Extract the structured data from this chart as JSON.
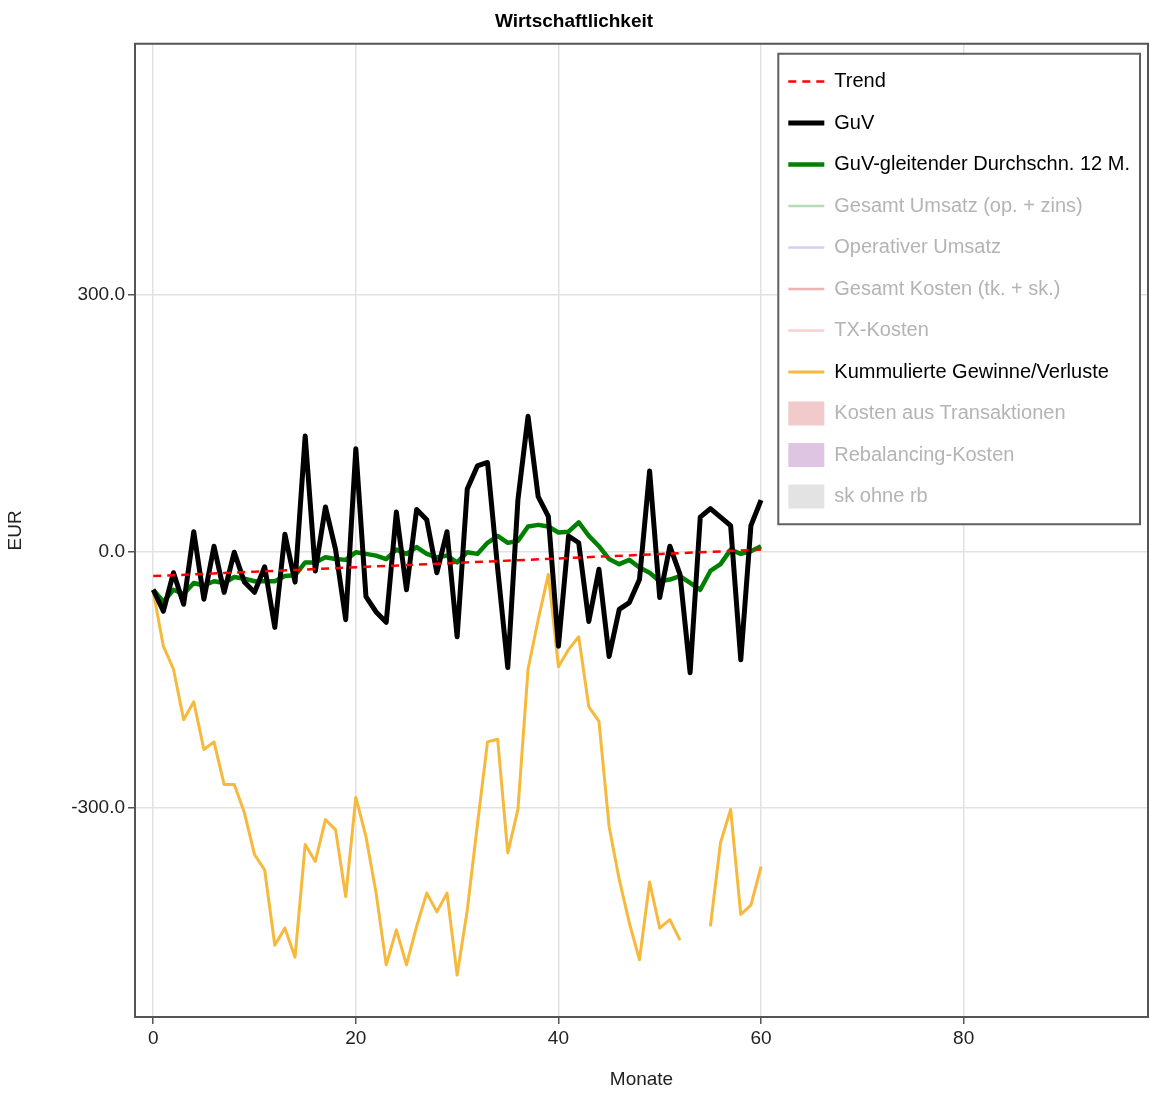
{
  "chart_data": {
    "type": "line",
    "title": "Wirtschaftlichkeit",
    "xlabel": "Monate",
    "ylabel": "EUR",
    "x": [
      0,
      1,
      2,
      3,
      4,
      5,
      6,
      7,
      8,
      9,
      10,
      11,
      12,
      13,
      14,
      15,
      16,
      17,
      18,
      19,
      20,
      21,
      22,
      23,
      24,
      25,
      26,
      27,
      28,
      29,
      30,
      31,
      32,
      33,
      34,
      35,
      36,
      37,
      38,
      39,
      40,
      41,
      42,
      43,
      44,
      45,
      46,
      47,
      48,
      49,
      50,
      51,
      52,
      53,
      54,
      55,
      56,
      57,
      58,
      59,
      60
    ],
    "xlim": [
      -1.8,
      98.2
    ],
    "xticks": [
      0,
      20,
      40,
      60,
      80
    ],
    "ylim": [
      -545,
      594
    ],
    "yticks": [
      {
        "value": -300,
        "label": "-300.0"
      },
      {
        "value": 0,
        "label": "0.0"
      },
      {
        "value": 300,
        "label": "300.0"
      }
    ],
    "grid": true,
    "legend": "top right",
    "marker": "none",
    "series": [
      {
        "name": "Trend",
        "color": "#ff0000",
        "line_style": "dashed",
        "x": [
          0,
          60
        ],
        "values": [
          -29,
          2
        ]
      },
      {
        "name": "GuV",
        "color": "#000000",
        "values": [
          -45,
          -70,
          -25,
          -62,
          23,
          -56,
          6,
          -48,
          -1,
          -36,
          -48,
          -18,
          -89,
          20,
          -36,
          135,
          -23,
          52,
          2,
          -80,
          120,
          -53,
          -71,
          -83,
          46,
          -45,
          49,
          37,
          -25,
          23,
          -100,
          73,
          100,
          104,
          -20,
          -136,
          60,
          158,
          64,
          41,
          -111,
          18,
          10,
          -82,
          -21,
          -123,
          -68,
          -60,
          -33,
          94,
          -54,
          6,
          -27,
          -142,
          40,
          50,
          40,
          30,
          -127,
          30,
          60
        ]
      },
      {
        "name": "GuV-gleitender Durchschn. 12 M.",
        "color": "#008000",
        "values": [
          -45,
          -59,
          -45,
          -50,
          -37,
          -40,
          -35,
          -37,
          -30,
          -32,
          -35,
          -35,
          -35,
          -29,
          -28,
          -13,
          -13,
          -7,
          -9,
          -10,
          -1,
          -3,
          -5,
          -9,
          2,
          -3,
          5,
          -3,
          -7,
          -5,
          -13,
          -1,
          -3,
          10,
          18,
          10,
          12,
          29,
          31,
          29,
          22,
          23,
          34,
          18,
          6,
          -9,
          -15,
          -10,
          -19,
          -25,
          -35,
          -33,
          -29,
          -37,
          -45,
          -23,
          -15,
          2,
          -3,
          0,
          6
        ]
      },
      {
        "name": "Gesamt Umsatz (op. + zins)",
        "color": "#88c488",
        "values": [
          null,
          null,
          null,
          null,
          null,
          null,
          null,
          null,
          null,
          null,
          null,
          null,
          null,
          null,
          null,
          null,
          null,
          null,
          null,
          null,
          null,
          null,
          null,
          null,
          null,
          null,
          null,
          null,
          null,
          null,
          null,
          null,
          null,
          null,
          null,
          null,
          null,
          null,
          null,
          null,
          null,
          null,
          null,
          null,
          null,
          null,
          null,
          null,
          null,
          null,
          null,
          null,
          null,
          null,
          null,
          null,
          null,
          null,
          null,
          null,
          null
        ]
      },
      {
        "name": "Operativer Umsatz",
        "color": "#b0b0e8",
        "values": [
          null,
          null,
          null,
          null,
          null,
          null,
          null,
          null,
          null,
          null,
          null,
          null,
          null,
          null,
          null,
          null,
          null,
          null,
          null,
          null,
          null,
          null,
          null,
          null,
          null,
          null,
          null,
          null,
          null,
          null,
          null,
          null,
          null,
          null,
          null,
          null,
          null,
          null,
          null,
          null,
          null,
          null,
          null,
          null,
          null,
          null,
          null,
          null,
          null,
          null,
          null,
          null,
          null,
          null,
          null,
          null,
          null,
          null,
          null,
          null,
          null
        ]
      },
      {
        "name": "Gesamt Kosten (tk. + sk.)",
        "color": "#e08080",
        "values": [
          null,
          null,
          null,
          null,
          null,
          null,
          null,
          null,
          null,
          null,
          null,
          null,
          null,
          null,
          null,
          null,
          null,
          null,
          null,
          null,
          null,
          null,
          null,
          null,
          null,
          null,
          null,
          null,
          null,
          null,
          null,
          null,
          null,
          null,
          null,
          null,
          null,
          null,
          null,
          null,
          null,
          null,
          null,
          null,
          null,
          null,
          null,
          null,
          null,
          null,
          null,
          null,
          null,
          null,
          null,
          null,
          null,
          null,
          null,
          null,
          null
        ]
      },
      {
        "name": "TX-Kosten",
        "color": "#f0b0b0",
        "values": [
          null,
          null,
          null,
          null,
          null,
          null,
          null,
          null,
          null,
          null,
          null,
          null,
          null,
          null,
          null,
          null,
          null,
          null,
          null,
          null,
          null,
          null,
          null,
          null,
          null,
          null,
          null,
          null,
          null,
          null,
          null,
          null,
          null,
          null,
          null,
          null,
          null,
          null,
          null,
          null,
          null,
          null,
          null,
          null,
          null,
          null,
          null,
          null,
          null,
          null,
          null,
          null,
          null,
          null,
          null,
          null,
          null,
          null,
          null,
          null,
          null
        ]
      },
      {
        "name": "Kummulierte Gewinne/Verluste",
        "color": "#f7b93c",
        "values": [
          -47,
          -111,
          -138,
          -197,
          -176,
          -232,
          -223,
          -273,
          -273,
          -306,
          -355,
          -373,
          -461,
          -441,
          -475,
          -343,
          -363,
          -314,
          -326,
          -404,
          -288,
          -334,
          -400,
          -484,
          -443,
          -484,
          -439,
          -400,
          -422,
          -400,
          -496,
          -420,
          -320,
          -223,
          -220,
          -353,
          -302,
          -138,
          -80,
          -27,
          -135,
          -115,
          -100,
          -182,
          -199,
          -322,
          -384,
          -435,
          -478,
          -387,
          -441,
          -431,
          -455,
          null,
          null,
          -439,
          -341,
          -302,
          -425,
          -414,
          -369
        ]
      },
      {
        "name": "Kosten aus Transaktionen",
        "type": "bar",
        "color": "#e8a8a8",
        "values": [
          null,
          null,
          null,
          null,
          null,
          null,
          null,
          null,
          null,
          null,
          null,
          null,
          null,
          null,
          null,
          null,
          null,
          null,
          null,
          null,
          null,
          null,
          null,
          null,
          null,
          null,
          null,
          null,
          null,
          null,
          null,
          null,
          null,
          null,
          null,
          null,
          null,
          null,
          null,
          null,
          null,
          null,
          null,
          null,
          null,
          null,
          null,
          null,
          null,
          null,
          null,
          null,
          null,
          null,
          null,
          null,
          null,
          null,
          null,
          null,
          null
        ]
      },
      {
        "name": "Rebalancing-Kosten",
        "type": "bar",
        "color": "#c8a0d0",
        "values": [
          null,
          null,
          null,
          null,
          null,
          null,
          null,
          null,
          null,
          null,
          null,
          null,
          null,
          null,
          null,
          null,
          null,
          null,
          null,
          null,
          null,
          null,
          null,
          null,
          null,
          null,
          null,
          null,
          null,
          null,
          null,
          null,
          null,
          null,
          null,
          null,
          null,
          null,
          null,
          null,
          null,
          null,
          null,
          null,
          null,
          null,
          null,
          null,
          null,
          null,
          null,
          null,
          null,
          null,
          null,
          null,
          null,
          null,
          null,
          null,
          null
        ]
      },
      {
        "name": "sk ohne rb",
        "type": "bar",
        "color": "#d0d0d0",
        "values": [
          null,
          null,
          null,
          null,
          null,
          null,
          null,
          null,
          null,
          null,
          null,
          null,
          null,
          null,
          null,
          null,
          null,
          null,
          null,
          null,
          null,
          null,
          null,
          null,
          null,
          null,
          null,
          null,
          null,
          null,
          null,
          null,
          null,
          null,
          null,
          null,
          null,
          null,
          null,
          null,
          null,
          null,
          null,
          null,
          null,
          null,
          null,
          null,
          null,
          null,
          null,
          null,
          null,
          null,
          null,
          null,
          null,
          null,
          null,
          null,
          null
        ]
      }
    ]
  }
}
